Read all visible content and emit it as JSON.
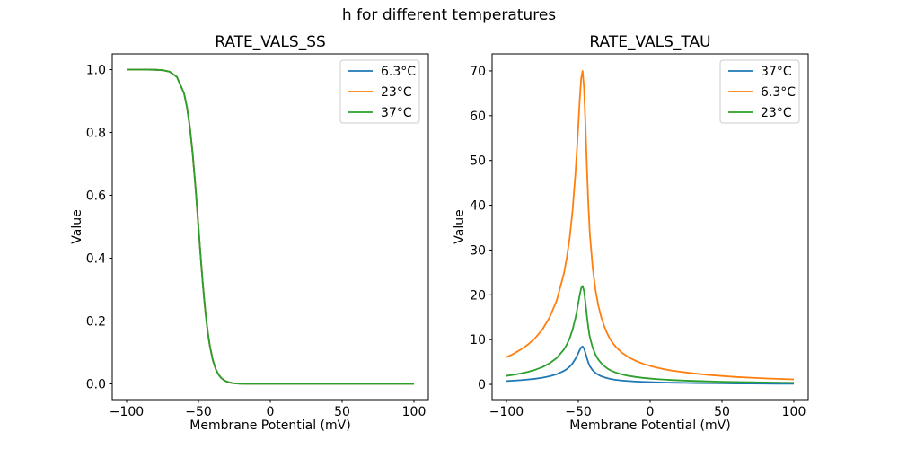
{
  "figure": {
    "suptitle": "h for different temperatures",
    "background": "#ffffff"
  },
  "colors": {
    "blue": "#1f77b4",
    "orange": "#ff7f0e",
    "green": "#2ca02c",
    "spine": "#000000",
    "legend_border": "#cccccc"
  },
  "chart_data": [
    {
      "type": "line",
      "title": "RATE_VALS_SS",
      "xlabel": "Membrane Potential (mV)",
      "ylabel": "Value",
      "xlim": [
        -110,
        110
      ],
      "ylim": [
        -0.05,
        1.05
      ],
      "xticks": [
        -100,
        -50,
        0,
        50,
        100
      ],
      "xtick_labels": [
        "−100",
        "−50",
        "0",
        "50",
        "100"
      ],
      "yticks": [
        0.0,
        0.2,
        0.4,
        0.6,
        0.8,
        1.0
      ],
      "ytick_labels": [
        "0.0",
        "0.2",
        "0.4",
        "0.6",
        "0.8",
        "1.0"
      ],
      "grid": false,
      "legend_position": "upper right",
      "x": [
        -100,
        -95,
        -90,
        -85,
        -80,
        -75,
        -70,
        -65,
        -60,
        -58,
        -56,
        -54,
        -52,
        -51,
        -50,
        -49,
        -48,
        -47,
        -46,
        -45,
        -44,
        -43,
        -42,
        -40,
        -38,
        -36,
        -34,
        -32,
        -30,
        -28,
        -26,
        -24,
        -22,
        -20,
        -15,
        -10,
        -5,
        0,
        5,
        10,
        15,
        20,
        30,
        40,
        50,
        60,
        70,
        80,
        90,
        100
      ],
      "series": [
        {
          "name": "6.3°C",
          "color": "#1f77b4",
          "values": [
            1,
            1,
            1,
            0.9998,
            0.9994,
            0.9981,
            0.9933,
            0.9766,
            0.9241,
            0.8808,
            0.8176,
            0.7311,
            0.6225,
            0.5622,
            0.5,
            0.4378,
            0.3775,
            0.3208,
            0.2689,
            0.2227,
            0.1824,
            0.148,
            0.1192,
            0.0759,
            0.0474,
            0.0293,
            0.018,
            0.011,
            0.0067,
            0.0041,
            0.0025,
            0.0015,
            0.0009,
            0.0006,
            0.0002,
            0.0001,
            0,
            0,
            0,
            0,
            0,
            0,
            0,
            0,
            0,
            0,
            0,
            0,
            0,
            0
          ]
        },
        {
          "name": "23°C",
          "color": "#ff7f0e",
          "values": [
            1,
            1,
            1,
            0.9998,
            0.9994,
            0.9981,
            0.9933,
            0.9766,
            0.9241,
            0.8808,
            0.8176,
            0.7311,
            0.6225,
            0.5622,
            0.5,
            0.4378,
            0.3775,
            0.3208,
            0.2689,
            0.2227,
            0.1824,
            0.148,
            0.1192,
            0.0759,
            0.0474,
            0.0293,
            0.018,
            0.011,
            0.0067,
            0.0041,
            0.0025,
            0.0015,
            0.0009,
            0.0006,
            0.0002,
            0.0001,
            0,
            0,
            0,
            0,
            0,
            0,
            0,
            0,
            0,
            0,
            0,
            0,
            0,
            0
          ]
        },
        {
          "name": "37°C",
          "color": "#2ca02c",
          "values": [
            1,
            1,
            1,
            0.9998,
            0.9994,
            0.9981,
            0.9933,
            0.9766,
            0.9241,
            0.8808,
            0.8176,
            0.7311,
            0.6225,
            0.5622,
            0.5,
            0.4378,
            0.3775,
            0.3208,
            0.2689,
            0.2227,
            0.1824,
            0.148,
            0.1192,
            0.0759,
            0.0474,
            0.0293,
            0.018,
            0.011,
            0.0067,
            0.0041,
            0.0025,
            0.0015,
            0.0009,
            0.0006,
            0.0002,
            0.0001,
            0,
            0,
            0,
            0,
            0,
            0,
            0,
            0,
            0,
            0,
            0,
            0,
            0,
            0
          ]
        }
      ]
    },
    {
      "type": "line",
      "title": "RATE_VALS_TAU",
      "xlabel": "Membrane Potential (mV)",
      "ylabel": "Value",
      "xlim": [
        -110,
        110
      ],
      "ylim": [
        -3.4,
        73.8
      ],
      "xticks": [
        -100,
        -50,
        0,
        50,
        100
      ],
      "xtick_labels": [
        "−100",
        "−50",
        "0",
        "50",
        "100"
      ],
      "yticks": [
        0,
        10,
        20,
        30,
        40,
        50,
        60,
        70
      ],
      "ytick_labels": [
        "0",
        "10",
        "20",
        "30",
        "40",
        "50",
        "60",
        "70"
      ],
      "grid": false,
      "legend_position": "upper right",
      "x": [
        -100,
        -95,
        -90,
        -85,
        -80,
        -75,
        -70,
        -65,
        -60,
        -58,
        -56,
        -54,
        -52,
        -51,
        -50,
        -49,
        -48,
        -47,
        -46,
        -45,
        -44,
        -43,
        -42,
        -40,
        -38,
        -36,
        -34,
        -32,
        -30,
        -28,
        -26,
        -24,
        -22,
        -20,
        -15,
        -10,
        -5,
        0,
        5,
        10,
        15,
        20,
        30,
        40,
        50,
        60,
        70,
        80,
        90,
        100
      ],
      "series": [
        {
          "name": "37°C",
          "color": "#1f77b4",
          "values": [
            0.73,
            0.83,
            0.94,
            1.08,
            1.25,
            1.48,
            1.81,
            2.27,
            3.0,
            3.42,
            3.96,
            4.69,
            5.69,
            6.31,
            7.0,
            7.69,
            8.27,
            8.46,
            8.0,
            7.0,
            5.85,
            4.85,
            4.08,
            3.15,
            2.54,
            2.12,
            1.81,
            1.58,
            1.38,
            1.23,
            1.12,
            1.02,
            0.94,
            0.87,
            0.73,
            0.63,
            0.56,
            0.5,
            0.45,
            0.41,
            0.37,
            0.35,
            0.3,
            0.26,
            0.23,
            0.2,
            0.18,
            0.16,
            0.15,
            0.13
          ]
        },
        {
          "name": "6.3°C",
          "color": "#ff7f0e",
          "values": [
            6.04,
            6.84,
            7.79,
            8.9,
            10.34,
            12.24,
            14.95,
            18.76,
            24.8,
            28.3,
            32.75,
            38.8,
            47.06,
            52.15,
            57.88,
            63.6,
            68.37,
            70.0,
            66.14,
            57.88,
            48.34,
            40.07,
            33.71,
            26.08,
            20.99,
            17.49,
            14.95,
            13.04,
            11.45,
            10.18,
            9.22,
            8.43,
            7.79,
            7.16,
            6.04,
            5.25,
            4.61,
            4.13,
            3.72,
            3.37,
            3.08,
            2.86,
            2.45,
            2.13,
            1.88,
            1.65,
            1.49,
            1.34,
            1.21,
            1.11
          ]
        },
        {
          "name": "23°C",
          "color": "#2ca02c",
          "values": [
            1.9,
            2.15,
            2.45,
            2.8,
            3.25,
            3.85,
            4.7,
            5.9,
            7.8,
            8.9,
            10.3,
            12.2,
            14.8,
            16.4,
            18.2,
            20.0,
            21.5,
            22.0,
            20.8,
            18.2,
            15.2,
            12.6,
            10.6,
            8.2,
            6.6,
            5.5,
            4.7,
            4.1,
            3.6,
            3.2,
            2.9,
            2.65,
            2.45,
            2.25,
            1.9,
            1.65,
            1.45,
            1.3,
            1.17,
            1.06,
            0.97,
            0.9,
            0.77,
            0.67,
            0.59,
            0.52,
            0.47,
            0.42,
            0.38,
            0.35
          ]
        }
      ]
    }
  ]
}
